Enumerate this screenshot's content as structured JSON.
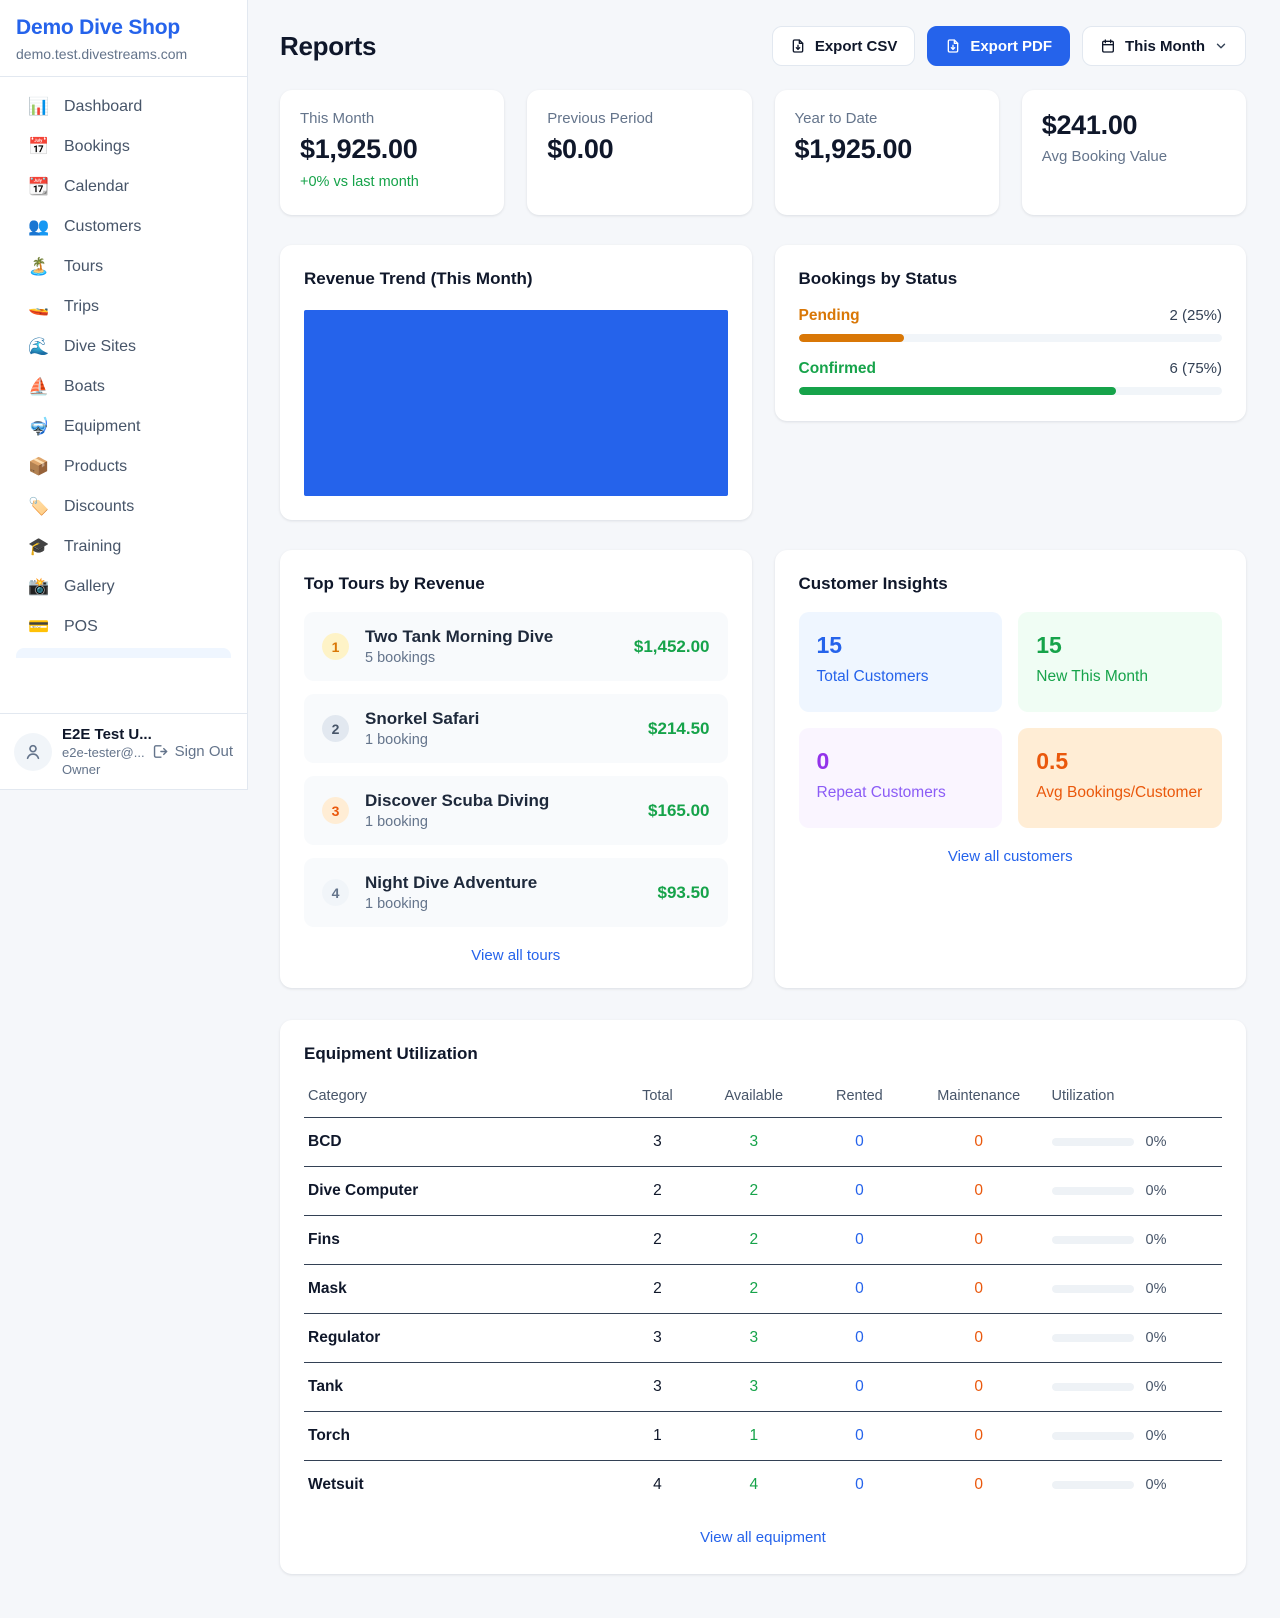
{
  "colors": {
    "accent": "#2563eb",
    "green": "#16a34a",
    "amber": "#d97706",
    "orange": "#ea580c",
    "purple": "#9333ea",
    "chart_fill": "#2563eb"
  },
  "brand": {
    "name": "Demo Dive Shop",
    "domain": "demo.test.divestreams.com"
  },
  "sidebar": {
    "items": [
      {
        "name": "dashboard",
        "glyph": "📊",
        "label": "Dashboard"
      },
      {
        "name": "bookings",
        "glyph": "📅",
        "label": "Bookings"
      },
      {
        "name": "calendar",
        "glyph": "📆",
        "label": "Calendar"
      },
      {
        "name": "customers",
        "glyph": "👥",
        "label": "Customers"
      },
      {
        "name": "tours",
        "glyph": "🏝️",
        "label": "Tours"
      },
      {
        "name": "trips",
        "glyph": "🚤",
        "label": "Trips"
      },
      {
        "name": "dive-sites",
        "glyph": "🌊",
        "label": "Dive Sites"
      },
      {
        "name": "boats",
        "glyph": "⛵",
        "label": "Boats"
      },
      {
        "name": "equipment",
        "glyph": "🤿",
        "label": "Equipment"
      },
      {
        "name": "products",
        "glyph": "📦",
        "label": "Products"
      },
      {
        "name": "discounts",
        "glyph": "🏷️",
        "label": "Discounts"
      },
      {
        "name": "training",
        "glyph": "🎓",
        "label": "Training"
      },
      {
        "name": "gallery",
        "glyph": "📸",
        "label": "Gallery"
      },
      {
        "name": "pos",
        "glyph": "💳",
        "label": "POS"
      }
    ],
    "user": {
      "name": "E2E Test U...",
      "email": "e2e-tester@...",
      "role": "Owner",
      "sign_out": "Sign Out"
    }
  },
  "header": {
    "title": "Reports",
    "export_csv": "Export CSV",
    "export_pdf": "Export PDF",
    "period": "This Month"
  },
  "stats": [
    {
      "label": "This Month",
      "value": "$1,925.00",
      "delta": "+0% vs last month"
    },
    {
      "label": "Previous Period",
      "value": "$0.00"
    },
    {
      "label": "Year to Date",
      "value": "$1,925.00"
    },
    {
      "label": "Avg Booking Value",
      "value": "$241.00"
    }
  ],
  "revenue_trend": {
    "title": "Revenue Trend (This Month)"
  },
  "bookings_by_status": {
    "title": "Bookings by Status",
    "items": [
      {
        "label": "Pending",
        "count": "2 (25%)",
        "pct": 25
      },
      {
        "label": "Confirmed",
        "count": "6 (75%)",
        "pct": 75
      }
    ]
  },
  "top_tours": {
    "title": "Top Tours by Revenue",
    "view_all": "View all tours",
    "items": [
      {
        "rank": "1",
        "name": "Two Tank Morning Dive",
        "bookings": "5 bookings",
        "revenue": "$1,452.00"
      },
      {
        "rank": "2",
        "name": "Snorkel Safari",
        "bookings": "1 booking",
        "revenue": "$214.50"
      },
      {
        "rank": "3",
        "name": "Discover Scuba Diving",
        "bookings": "1 booking",
        "revenue": "$165.00"
      },
      {
        "rank": "4",
        "name": "Night Dive Adventure",
        "bookings": "1 booking",
        "revenue": "$93.50"
      }
    ]
  },
  "customer_insights": {
    "title": "Customer Insights",
    "view_all": "View all customers",
    "cards": [
      {
        "value": "15",
        "label": "Total Customers"
      },
      {
        "value": "15",
        "label": "New This Month"
      },
      {
        "value": "0",
        "label": "Repeat Customers"
      },
      {
        "value": "0.5",
        "label": "Avg Bookings/Customer"
      }
    ]
  },
  "equipment": {
    "title": "Equipment Utilization",
    "view_all": "View all equipment",
    "columns": [
      "Category",
      "Total",
      "Available",
      "Rented",
      "Maintenance",
      "Utilization"
    ],
    "rows": [
      {
        "category": "BCD",
        "total": "3",
        "available": "3",
        "rented": "0",
        "maintenance": "0",
        "utilization": "0%",
        "pct": 0
      },
      {
        "category": "Dive Computer",
        "total": "2",
        "available": "2",
        "rented": "0",
        "maintenance": "0",
        "utilization": "0%",
        "pct": 0
      },
      {
        "category": "Fins",
        "total": "2",
        "available": "2",
        "rented": "0",
        "maintenance": "0",
        "utilization": "0%",
        "pct": 0
      },
      {
        "category": "Mask",
        "total": "2",
        "available": "2",
        "rented": "0",
        "maintenance": "0",
        "utilization": "0%",
        "pct": 0
      },
      {
        "category": "Regulator",
        "total": "3",
        "available": "3",
        "rented": "0",
        "maintenance": "0",
        "utilization": "0%",
        "pct": 0
      },
      {
        "category": "Tank",
        "total": "3",
        "available": "3",
        "rented": "0",
        "maintenance": "0",
        "utilization": "0%",
        "pct": 0
      },
      {
        "category": "Torch",
        "total": "1",
        "available": "1",
        "rented": "0",
        "maintenance": "0",
        "utilization": "0%",
        "pct": 0
      },
      {
        "category": "Wetsuit",
        "total": "4",
        "available": "4",
        "rented": "0",
        "maintenance": "0",
        "utilization": "0%",
        "pct": 0
      }
    ]
  }
}
